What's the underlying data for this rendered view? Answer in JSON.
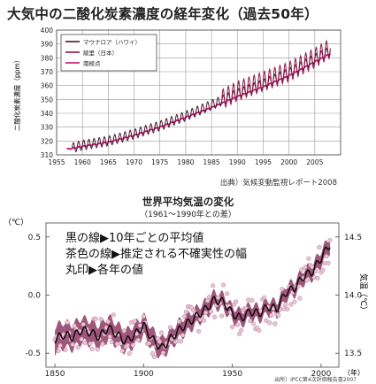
{
  "chart_data": [
    {
      "type": "line",
      "title": "大気中の二酸化炭素濃度の経年変化（過去50年）",
      "ylabel": "二酸化炭素濃度（ppm）",
      "source": "出典）気候変動監視レポート2008",
      "xlim": [
        1955,
        2010
      ],
      "ylim": [
        310,
        400
      ],
      "xticks": [
        1955,
        1960,
        1965,
        1970,
        1975,
        1980,
        1985,
        1990,
        1995,
        2000,
        2005
      ],
      "yticks": [
        310,
        320,
        330,
        340,
        350,
        360,
        370,
        380,
        390,
        400
      ],
      "grid": true,
      "legend_position": "top-left",
      "series": [
        {
          "name": "マウナロア（ハワイ）",
          "color": "#4a1530",
          "x": [
            1958,
            1960,
            1965,
            1970,
            1975,
            1980,
            1985,
            1990,
            1995,
            2000,
            2005,
            2008
          ],
          "values": [
            315,
            317,
            320,
            325,
            331,
            338,
            346,
            354,
            361,
            369,
            379,
            385
          ],
          "seasonal_amplitude": 3.5
        },
        {
          "name": "綾里（日本）",
          "color": "#8c1848",
          "x": [
            1987,
            1990,
            1995,
            2000,
            2005,
            2008
          ],
          "values": [
            350,
            356,
            363,
            370,
            380,
            387
          ],
          "seasonal_amplitude": 7
        },
        {
          "name": "南極点",
          "color": "#c4136e",
          "x": [
            1957,
            1960,
            1965,
            1970,
            1975,
            1980,
            1985,
            1990,
            1995,
            2000,
            2005,
            2008
          ],
          "values": [
            314,
            316,
            319,
            324,
            330,
            337,
            344,
            352,
            359,
            367,
            377,
            383
          ],
          "seasonal_amplitude": 0.4
        }
      ]
    },
    {
      "type": "line",
      "title": "世界平均気温の変化",
      "subtitle": "（1961～1990年との差）",
      "ylabel_left": "（℃）",
      "ylabel_right": "気温（℃）",
      "xunit": "（年）",
      "source": "出所）IPCC第4次評価報告書2007",
      "xlim": [
        1845,
        2010
      ],
      "ylim": [
        -0.62,
        0.62
      ],
      "xticks": [
        1850,
        1900,
        1950,
        2000
      ],
      "yticks_left": [
        "0.5",
        "0.0",
        "-0.5"
      ],
      "yticks_right": [
        "14.5",
        "14.0",
        "13.5"
      ],
      "annotations": [
        "黒の線▶10年ごとの平均値",
        "茶色の線▶推定される不確実性の幅",
        "丸印▶各年の値"
      ],
      "series": [
        {
          "name": "10年ごとの平均値",
          "x": [
            1850,
            1855,
            1860,
            1865,
            1870,
            1875,
            1880,
            1885,
            1890,
            1895,
            1900,
            1905,
            1910,
            1915,
            1920,
            1925,
            1930,
            1935,
            1940,
            1945,
            1950,
            1955,
            1960,
            1965,
            1970,
            1975,
            1980,
            1985,
            1990,
            1995,
            2000,
            2005
          ],
          "values": [
            -0.38,
            -0.34,
            -0.36,
            -0.3,
            -0.32,
            -0.36,
            -0.28,
            -0.34,
            -0.4,
            -0.34,
            -0.26,
            -0.38,
            -0.46,
            -0.38,
            -0.3,
            -0.24,
            -0.18,
            -0.12,
            -0.04,
            -0.06,
            -0.16,
            -0.2,
            -0.14,
            -0.16,
            -0.1,
            -0.12,
            0.02,
            0.06,
            0.16,
            0.2,
            0.32,
            0.44
          ]
        }
      ]
    }
  ]
}
